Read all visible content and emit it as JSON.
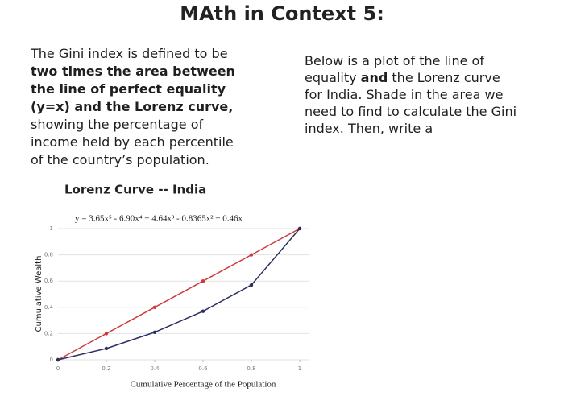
{
  "header": {
    "title": "MAth in Context 5:"
  },
  "left_text": {
    "lines": [
      [
        {
          "text": "The Gini index is defined to be",
          "bold": false
        }
      ],
      [
        {
          "text": "two times the area between",
          "bold": true
        }
      ],
      [
        {
          "text": "the line of perfect equality",
          "bold": true
        }
      ],
      [
        {
          "text": "(y=x) and the Lorenz curve,",
          "bold": true
        }
      ],
      [
        {
          "text": "showing the percentage of",
          "bold": false
        }
      ],
      [
        {
          "text": "income held by each percentile",
          "bold": false
        }
      ],
      [
        {
          "text": "of the country’s population.",
          "bold": false
        }
      ]
    ]
  },
  "right_text": {
    "lines": [
      [
        {
          "text": "Below is a plot of the line of",
          "bold": false
        }
      ],
      [
        {
          "text": "equality ",
          "bold": false
        },
        {
          "text": "and",
          "bold": true
        },
        {
          "text": " the Lorenz curve",
          "bold": false
        }
      ],
      [
        {
          "text": "for India.  Shade in the area we",
          "bold": false
        }
      ],
      [
        {
          "text": "need to find to calculate the Gini",
          "bold": false
        }
      ],
      [
        {
          "text": "index.  Then, write a",
          "bold": false
        }
      ]
    ]
  },
  "chart_data": {
    "type": "line",
    "title": "Lorenz Curve -- India",
    "annotation": "y = 3.65x⁵ - 6.90x⁴ + 4.64x³ - 0.8365x² + 0.46x",
    "x_label": "Cumulative Percentage of the Population",
    "y_label": "Cumulative Wealth",
    "x": [
      0,
      0.2,
      0.4,
      0.6,
      0.8,
      1
    ],
    "series": [
      {
        "color": "#d0393b",
        "values": [
          0,
          0.2,
          0.4,
          0.6,
          0.8,
          1
        ]
      },
      {
        "color": "#2b2f5e",
        "values": [
          0,
          0.086,
          0.21,
          0.37,
          0.57,
          1
        ]
      }
    ],
    "xlim": [
      0,
      1
    ],
    "ylim": [
      0,
      1
    ],
    "xticks": [
      0,
      0.2,
      0.4,
      0.6,
      0.8,
      1
    ],
    "yticks": [
      0,
      0.2,
      0.4,
      0.6,
      0.8,
      1
    ],
    "grid": true
  }
}
